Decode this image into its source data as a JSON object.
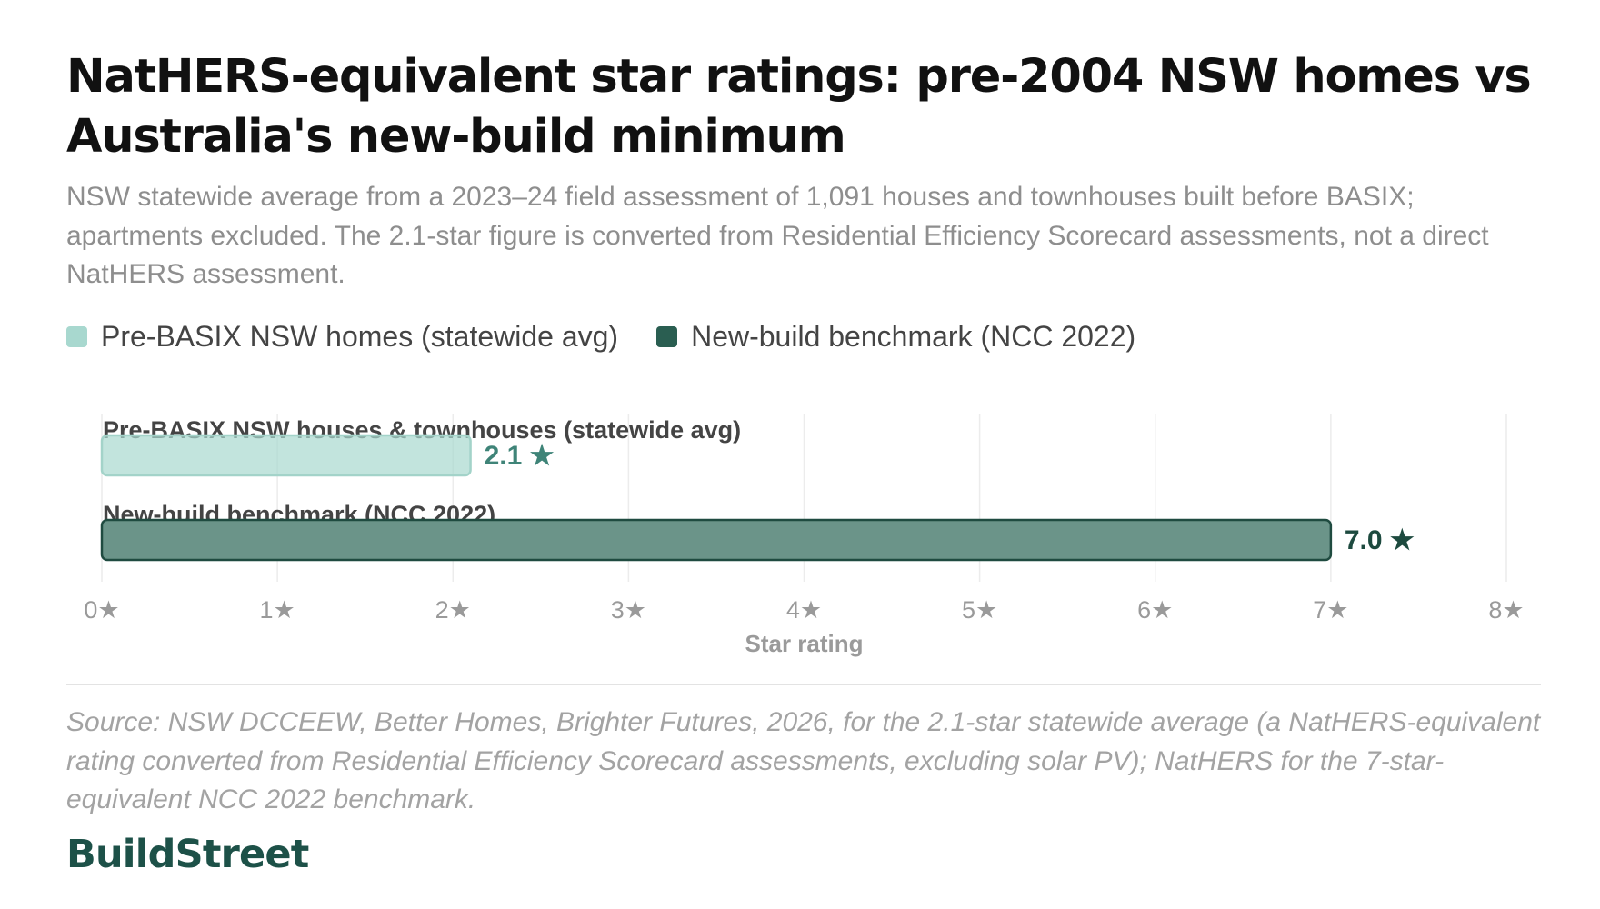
{
  "header": {
    "title": "NatHERS-equivalent star ratings: pre-2004 NSW homes vs Australia's new-build minimum",
    "subtitle": "NSW statewide average from a 2023–24 field assessment of 1,091 houses and townhouses built before BASIX; apartments excluded. The 2.1-star figure is converted from Residential Efficiency Scorecard assessments, not a direct NatHERS assessment."
  },
  "legend": [
    {
      "label": "Pre-BASIX NSW homes (statewide avg)",
      "color": "#a8d8cf"
    },
    {
      "label": "New-build benchmark (NCC 2022)",
      "color": "#2a5e51"
    }
  ],
  "chart_data": {
    "type": "bar",
    "orientation": "horizontal",
    "categories": [
      "Pre-BASIX NSW houses & townhouses (statewide avg)",
      "New-build benchmark (NCC 2022)"
    ],
    "values": [
      2.1,
      7.0
    ],
    "value_labels": [
      "2.1 ★",
      "7.0 ★"
    ],
    "colors": [
      "#a8d8cf",
      "#2a5e51"
    ],
    "label_colors": [
      "#3f8478",
      "#1d4a3f"
    ],
    "xlabel": "Star rating",
    "xlim": [
      0,
      8
    ],
    "xticks": [
      0,
      1,
      2,
      3,
      4,
      5,
      6,
      7,
      8
    ],
    "tick_labels": [
      "0★",
      "1★",
      "2★",
      "3★",
      "4★",
      "5★",
      "6★",
      "7★",
      "8★"
    ],
    "grid": "vertical"
  },
  "footer": {
    "source": "Source: NSW DCCEEW, Better Homes, Brighter Futures, 2026, for the 2.1-star statewide average (a NatHERS-equivalent rating converted from Residential Efficiency Scorecard assessments, excluding solar PV); NatHERS for the 7-star-equivalent NCC 2022 benchmark.",
    "brand": "BuildStreet"
  }
}
